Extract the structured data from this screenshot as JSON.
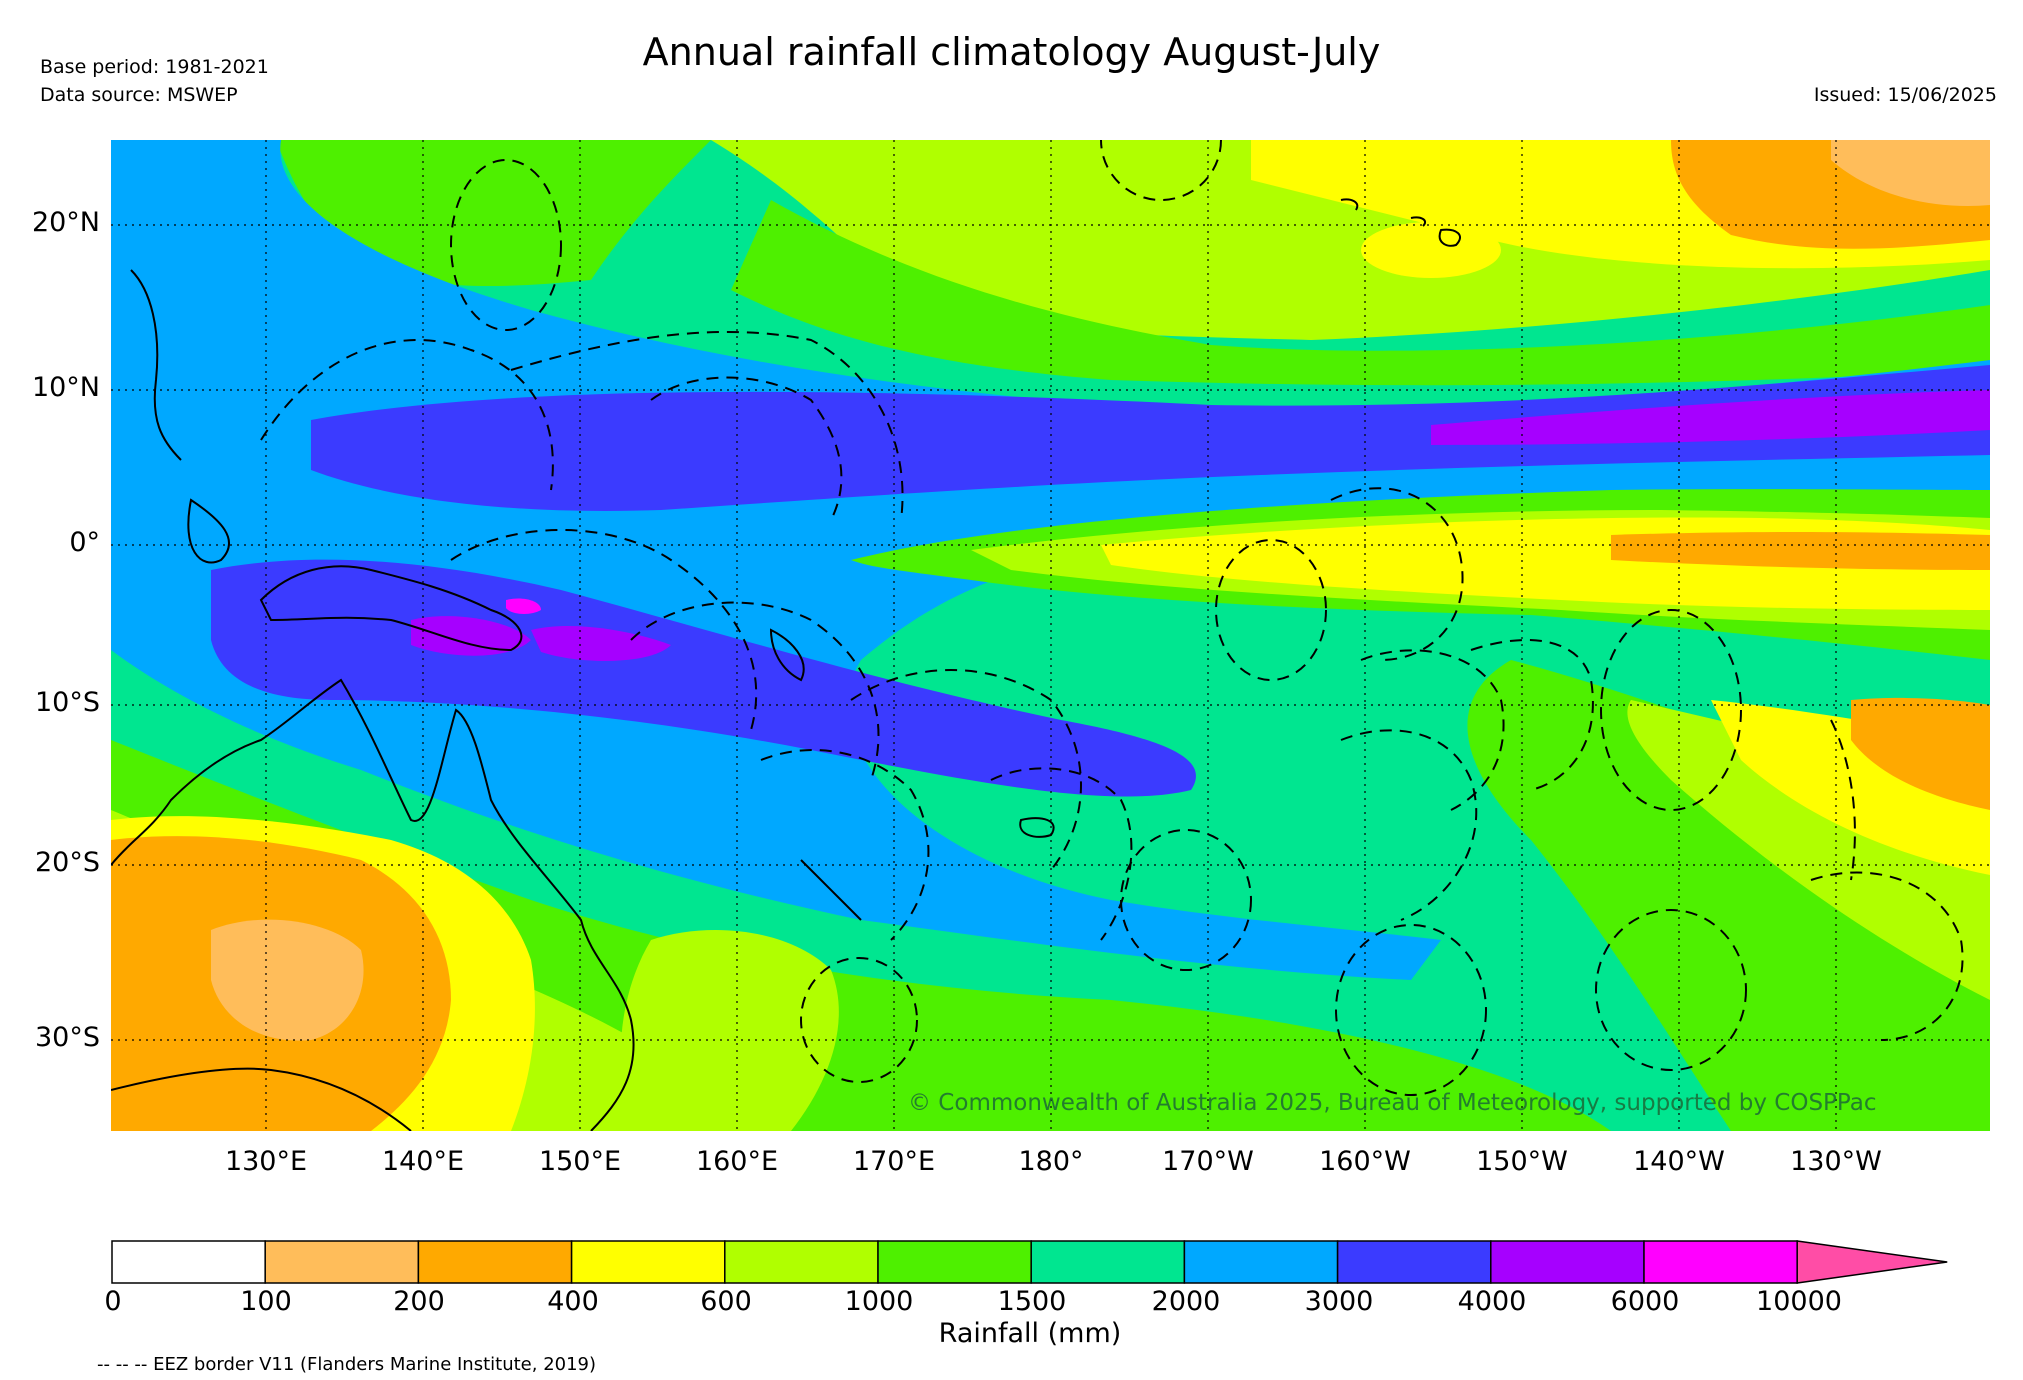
{
  "header": {
    "title": "Annual rainfall climatology August-July",
    "base_period": "Base period: 1981-2021",
    "data_source": "Data source: MSWEP",
    "issued": "Issued: 15/06/2025"
  },
  "map": {
    "lat_labels": [
      "20°N",
      "10°N",
      "0°",
      "10°S",
      "20°S",
      "30°S"
    ],
    "lon_labels": [
      "130°E",
      "140°E",
      "150°E",
      "160°E",
      "170°E",
      "180°",
      "170°W",
      "160°W",
      "150°W",
      "140°W",
      "130°W"
    ],
    "copyright": "© Commonwealth of Australia 2025, Bureau of Meteorology, supported by COSPPac"
  },
  "legend": {
    "label": "Rainfall (mm)",
    "ticks": [
      "0",
      "100",
      "200",
      "400",
      "600",
      "1000",
      "1500",
      "2000",
      "3000",
      "4000",
      "6000",
      "10000"
    ],
    "colors": [
      "#ffffff",
      "#ffbd5a",
      "#ffa900",
      "#ffff00",
      "#b0ff00",
      "#4ef000",
      "#00e690",
      "#00a8ff",
      "#3b3bff",
      "#a600ff",
      "#ff00ff",
      "#ff4da6"
    ],
    "eez_note": "-- -- -- EEZ border V11 (Flanders Marine Institute, 2019)"
  }
}
